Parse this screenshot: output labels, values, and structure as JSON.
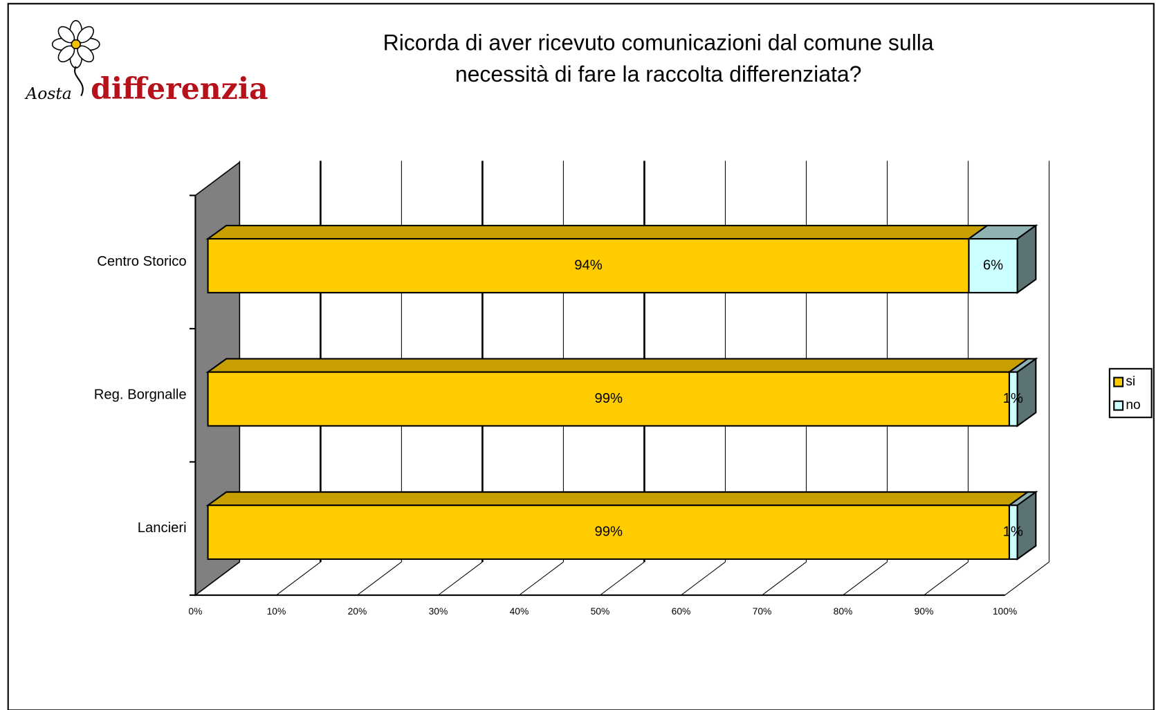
{
  "chart_data": {
    "type": "bar3d_stacked_horizontal",
    "title": [
      "Ricorda di aver ricevuto comunicazioni dal comune sulla",
      "necessità di fare la raccolta differenziata?"
    ],
    "logo": [
      "Aosta",
      "differenzia"
    ],
    "categories": [
      "Centro Storico",
      "Reg. Borgnalle",
      "Lancieri"
    ],
    "series": [
      {
        "name": "si",
        "color": "#ffcc00",
        "values": [
          94,
          99,
          99
        ],
        "value_labels": [
          "94%",
          "99%",
          "99%"
        ]
      },
      {
        "name": "no",
        "color": "#ccffff",
        "values": [
          6,
          1,
          1
        ],
        "value_labels": [
          "6%",
          "1%",
          "1%"
        ]
      }
    ],
    "xlim": [
      0,
      100
    ],
    "xticks": [
      {
        "value": 0,
        "label": "0%"
      },
      {
        "value": 10,
        "label": "10%"
      },
      {
        "value": 20,
        "label": "20%"
      },
      {
        "value": 30,
        "label": "30%"
      },
      {
        "value": 40,
        "label": "40%"
      },
      {
        "value": 50,
        "label": "50%"
      },
      {
        "value": 60,
        "label": "60%"
      },
      {
        "value": 70,
        "label": "70%"
      },
      {
        "value": 80,
        "label": "80%"
      },
      {
        "value": 90,
        "label": "90%"
      },
      {
        "value": 100,
        "label": "100%"
      }
    ],
    "grid": true,
    "legend": "right"
  }
}
